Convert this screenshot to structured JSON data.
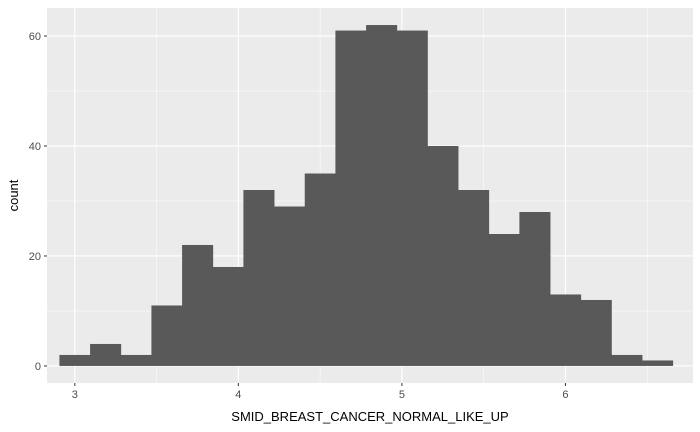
{
  "chart_data": {
    "type": "bar",
    "subtype": "histogram",
    "xlabel": "SMID_BREAST_CANCER_NORMAL_LIKE_UP",
    "ylabel": "count",
    "x_ticks": [
      "3",
      "4",
      "5",
      "6"
    ],
    "y_ticks": [
      "0",
      "20",
      "40",
      "60"
    ],
    "xlim": [
      2.83,
      6.78
    ],
    "ylim": [
      -3.1,
      65.1
    ],
    "bin_width": 0.1875,
    "bin_start": 2.906,
    "values": [
      2,
      4,
      2,
      11,
      22,
      18,
      32,
      29,
      35,
      61,
      62,
      61,
      40,
      32,
      24,
      28,
      13,
      12,
      2,
      1
    ],
    "grid": true,
    "legend": "none",
    "colors": {
      "panel_background": "#ebebeb",
      "grid_major": "#ffffff",
      "bar_fill": "#595959",
      "tick_text": "#4d4d4d"
    }
  }
}
